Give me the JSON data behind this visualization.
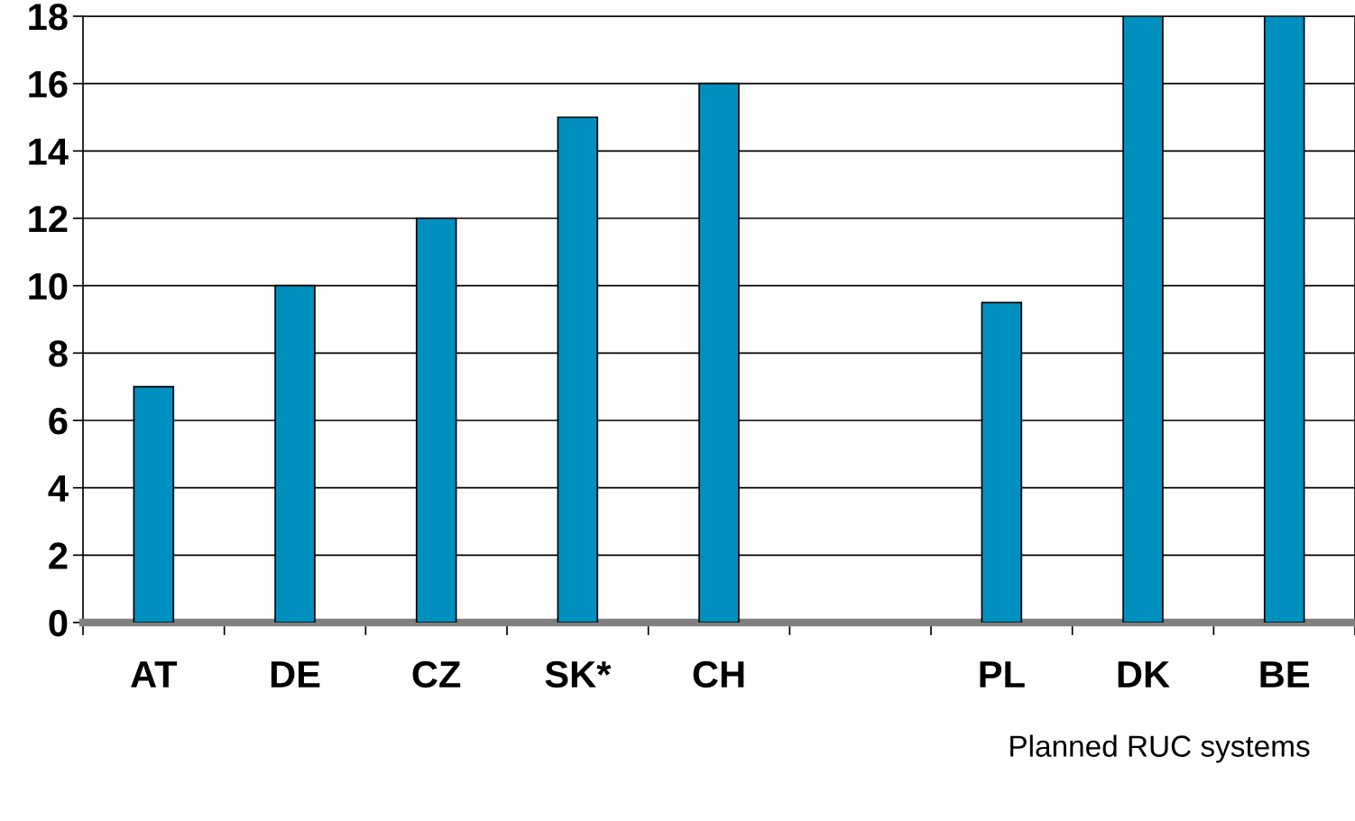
{
  "chart_data": {
    "type": "bar",
    "categories": [
      "AT",
      "DE",
      "CZ",
      "SK*",
      "CH",
      null,
      "PL",
      "DK",
      "BE"
    ],
    "values": [
      7,
      10,
      12,
      15,
      16,
      null,
      9.5,
      18,
      18
    ],
    "color": "#0090c0",
    "ylim": [
      0,
      18
    ],
    "yticks": [
      0,
      2,
      4,
      6,
      8,
      10,
      12,
      14,
      16,
      18
    ],
    "grid": "y",
    "annotations": [
      "Planned RUC systems"
    ]
  }
}
